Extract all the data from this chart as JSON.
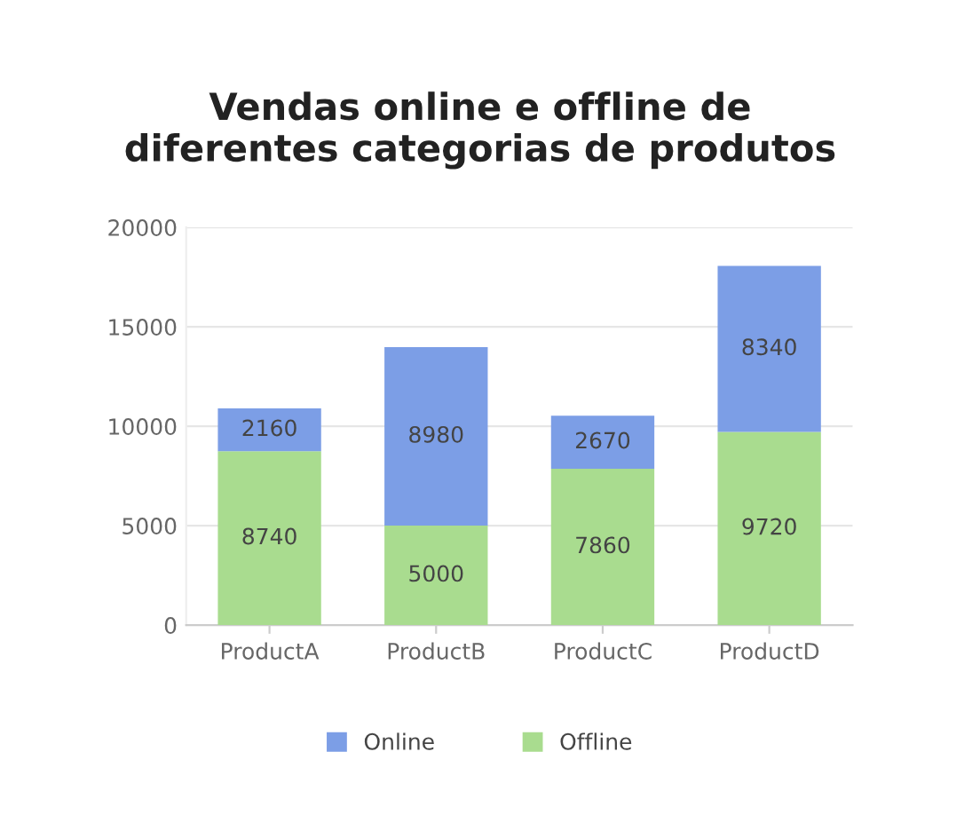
{
  "chart_data": {
    "type": "bar",
    "title": "Vendas online e offline de\ndiferentes categorias de produtos",
    "categories": [
      "ProductA",
      "ProductB",
      "ProductC",
      "ProductD"
    ],
    "series": [
      {
        "name": "Offline",
        "color": "#a9dc8f",
        "values": [
          8740,
          5000,
          7860,
          9720
        ]
      },
      {
        "name": "Online",
        "color": "#7c9ee6",
        "values": [
          2160,
          8980,
          2670,
          8340
        ]
      }
    ],
    "stacked": true,
    "data_labels": true,
    "ylim": [
      0,
      20000
    ],
    "yticks": [
      0,
      5000,
      10000,
      15000,
      20000
    ],
    "grid": "y",
    "legend": "bottom"
  }
}
